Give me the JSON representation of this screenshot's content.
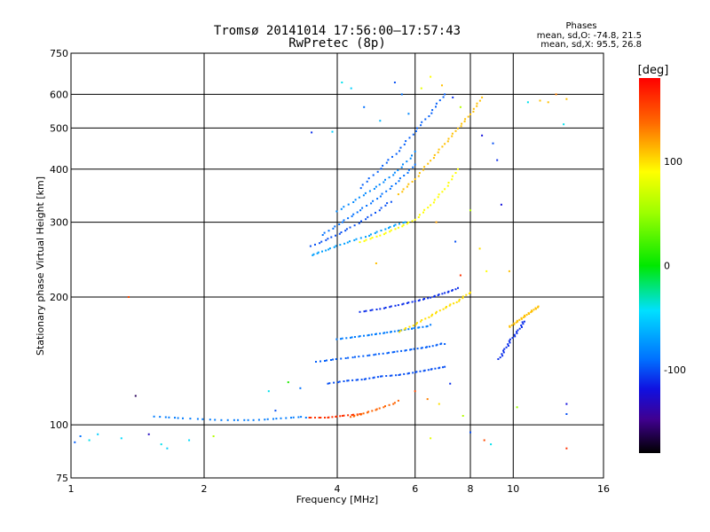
{
  "chart_data": {
    "type": "scatter",
    "title": "Tromsø 20141014 17:56:00–17:57:43",
    "subtitle": "RwPretec (8p)",
    "annotation": {
      "heading": "Phases",
      "line1": "mean, sd,O: -74.8, 21.5",
      "line2": "mean, sd,X:  95.5, 26.8"
    },
    "xlabel": "Frequency [MHz]",
    "ylabel": "Stationary phase Virtual Height [km]",
    "xscale": "log",
    "yscale": "log",
    "xlim": [
      1,
      16
    ],
    "ylim": [
      75,
      750
    ],
    "xticks": [
      1,
      2,
      4,
      6,
      8,
      10,
      16
    ],
    "xtick_labels": [
      "1",
      "2",
      "4",
      "6",
      "8",
      "10",
      "16"
    ],
    "yticks": [
      75,
      100,
      200,
      300,
      400,
      500,
      600,
      750
    ],
    "ytick_labels": [
      "75",
      "100",
      "200",
      "300",
      "400",
      "500",
      "600",
      "750"
    ],
    "grid": true,
    "colorbar": {
      "title": "[deg]",
      "range": [
        -180,
        180
      ],
      "ticks": [
        100,
        0,
        -100
      ],
      "tick_labels": [
        "100",
        "0",
        "-100"
      ]
    },
    "traces": [
      {
        "x": [
          1.55,
          1.8,
          2.2,
          2.6,
          3.0,
          3.4
        ],
        "y": [
          104,
          103,
          102,
          102,
          103,
          104
        ],
        "phase": -85
      },
      {
        "x": [
          3.45,
          3.8,
          4.1,
          4.5
        ],
        "y": [
          104,
          104,
          105,
          106
        ],
        "phase": 160
      },
      {
        "x": [
          4.3,
          4.6,
          5.0,
          5.5
        ],
        "y": [
          105,
          107,
          110,
          114
        ],
        "phase": 140
      },
      {
        "x": [
          3.5,
          3.8,
          4.2,
          4.7,
          5.2,
          5.7
        ],
        "y": [
          250,
          258,
          268,
          278,
          290,
          300
        ],
        "phase": -70
      },
      {
        "x": [
          4.5,
          5.0,
          5.5,
          6.0,
          6.5,
          7.0,
          7.5
        ],
        "y": [
          270,
          280,
          292,
          305,
          330,
          360,
          400
        ],
        "phase": 90
      },
      {
        "x": [
          3.5,
          3.9,
          4.3,
          4.8,
          5.3
        ],
        "y": [
          262,
          275,
          290,
          310,
          335
        ],
        "phase": -100
      },
      {
        "x": [
          3.7,
          4.1,
          4.5,
          5.0,
          5.5,
          6.0
        ],
        "y": [
          280,
          300,
          320,
          345,
          375,
          410
        ],
        "phase": -90
      },
      {
        "x": [
          4.0,
          4.5,
          5.0,
          5.5,
          6.0
        ],
        "y": [
          320,
          345,
          370,
          400,
          440
        ],
        "phase": -80
      },
      {
        "x": [
          4.5,
          5.0,
          5.5,
          6.0,
          6.5,
          7.0
        ],
        "y": [
          360,
          400,
          440,
          490,
          540,
          600
        ],
        "phase": -95
      },
      {
        "x": [
          5.5,
          6.0,
          6.5,
          7.0,
          7.5,
          8.0,
          8.5
        ],
        "y": [
          350,
          380,
          420,
          460,
          500,
          540,
          590
        ],
        "phase": 110
      },
      {
        "x": [
          3.6,
          4.0,
          4.5,
          5.0,
          5.5,
          6.0,
          6.5,
          7.0
        ],
        "y": [
          140,
          142,
          144,
          146,
          148,
          150,
          152,
          155
        ],
        "phase": -95
      },
      {
        "x": [
          3.8,
          4.2,
          4.6,
          5.0,
          5.5,
          6.0,
          6.5,
          7.0
        ],
        "y": [
          125,
          127,
          128,
          130,
          131,
          133,
          135,
          137
        ],
        "phase": -100
      },
      {
        "x": [
          4.0,
          4.4,
          4.8,
          5.2,
          5.6,
          6.0,
          6.5
        ],
        "y": [
          160,
          162,
          164,
          166,
          168,
          170,
          172
        ],
        "phase": -85
      },
      {
        "x": [
          5.5,
          6.0,
          6.5,
          7.0,
          7.5,
          8.0
        ],
        "y": [
          165,
          172,
          180,
          188,
          195,
          205
        ],
        "phase": 100
      },
      {
        "x": [
          4.5,
          5.0,
          5.5,
          6.0,
          6.5,
          7.0,
          7.5
        ],
        "y": [
          185,
          188,
          192,
          196,
          200,
          205,
          210
        ],
        "phase": -110
      },
      {
        "x": [
          9.3,
          9.6,
          9.9,
          10.3,
          10.6
        ],
        "y": [
          142,
          150,
          158,
          166,
          175
        ],
        "phase": -110
      },
      {
        "x": [
          9.8,
          10.2,
          10.6,
          11.0,
          11.4
        ],
        "y": [
          170,
          175,
          180,
          185,
          190
        ],
        "phase": 110
      }
    ],
    "points": [
      {
        "x": 1.02,
        "y": 91,
        "phase": -95
      },
      {
        "x": 1.05,
        "y": 94,
        "phase": -90
      },
      {
        "x": 1.1,
        "y": 92,
        "phase": -40
      },
      {
        "x": 1.15,
        "y": 95,
        "phase": -50
      },
      {
        "x": 1.3,
        "y": 93,
        "phase": -45
      },
      {
        "x": 1.35,
        "y": 200,
        "phase": 150
      },
      {
        "x": 1.4,
        "y": 117,
        "phase": -160
      },
      {
        "x": 1.5,
        "y": 95,
        "phase": -130
      },
      {
        "x": 1.6,
        "y": 90,
        "phase": -40
      },
      {
        "x": 1.65,
        "y": 88,
        "phase": -50
      },
      {
        "x": 1.85,
        "y": 92,
        "phase": -45
      },
      {
        "x": 2.1,
        "y": 94,
        "phase": 60
      },
      {
        "x": 2.8,
        "y": 120,
        "phase": -40
      },
      {
        "x": 2.9,
        "y": 108,
        "phase": -100
      },
      {
        "x": 3.1,
        "y": 126,
        "phase": 10
      },
      {
        "x": 3.3,
        "y": 122,
        "phase": -90
      },
      {
        "x": 3.5,
        "y": 488,
        "phase": -110
      },
      {
        "x": 3.9,
        "y": 490,
        "phase": -50
      },
      {
        "x": 4.1,
        "y": 640,
        "phase": -40
      },
      {
        "x": 4.3,
        "y": 620,
        "phase": -50
      },
      {
        "x": 4.6,
        "y": 560,
        "phase": -90
      },
      {
        "x": 5.0,
        "y": 520,
        "phase": -60
      },
      {
        "x": 5.4,
        "y": 640,
        "phase": -100
      },
      {
        "x": 5.6,
        "y": 600,
        "phase": -90
      },
      {
        "x": 5.8,
        "y": 540,
        "phase": -80
      },
      {
        "x": 6.2,
        "y": 620,
        "phase": 80
      },
      {
        "x": 6.5,
        "y": 660,
        "phase": 90
      },
      {
        "x": 6.9,
        "y": 630,
        "phase": 110
      },
      {
        "x": 7.3,
        "y": 590,
        "phase": -110
      },
      {
        "x": 7.6,
        "y": 560,
        "phase": 60
      },
      {
        "x": 8.5,
        "y": 480,
        "phase": -120
      },
      {
        "x": 9.0,
        "y": 460,
        "phase": -100
      },
      {
        "x": 9.2,
        "y": 420,
        "phase": -110
      },
      {
        "x": 9.4,
        "y": 330,
        "phase": -120
      },
      {
        "x": 6.7,
        "y": 300,
        "phase": 120
      },
      {
        "x": 7.4,
        "y": 270,
        "phase": -100
      },
      {
        "x": 8.4,
        "y": 260,
        "phase": 100
      },
      {
        "x": 8.0,
        "y": 320,
        "phase": 60
      },
      {
        "x": 8.7,
        "y": 230,
        "phase": 90
      },
      {
        "x": 7.6,
        "y": 225,
        "phase": 160
      },
      {
        "x": 6.0,
        "y": 120,
        "phase": 150
      },
      {
        "x": 6.4,
        "y": 115,
        "phase": 130
      },
      {
        "x": 6.8,
        "y": 112,
        "phase": 100
      },
      {
        "x": 7.2,
        "y": 125,
        "phase": -110
      },
      {
        "x": 7.7,
        "y": 105,
        "phase": 60
      },
      {
        "x": 8.0,
        "y": 96,
        "phase": -100
      },
      {
        "x": 8.6,
        "y": 92,
        "phase": 150
      },
      {
        "x": 6.5,
        "y": 93,
        "phase": 80
      },
      {
        "x": 8.9,
        "y": 90,
        "phase": -40
      },
      {
        "x": 10.2,
        "y": 110,
        "phase": 50
      },
      {
        "x": 10.8,
        "y": 575,
        "phase": -40
      },
      {
        "x": 11.5,
        "y": 580,
        "phase": 110
      },
      {
        "x": 12.0,
        "y": 575,
        "phase": 110
      },
      {
        "x": 12.5,
        "y": 600,
        "phase": 130
      },
      {
        "x": 13.0,
        "y": 510,
        "phase": -40
      },
      {
        "x": 13.2,
        "y": 585,
        "phase": 110
      },
      {
        "x": 13.2,
        "y": 112,
        "phase": -120
      },
      {
        "x": 13.2,
        "y": 106,
        "phase": -100
      },
      {
        "x": 13.2,
        "y": 88,
        "phase": 160
      },
      {
        "x": 9.8,
        "y": 230,
        "phase": 110
      },
      {
        "x": 4.9,
        "y": 240,
        "phase": 110
      }
    ]
  }
}
